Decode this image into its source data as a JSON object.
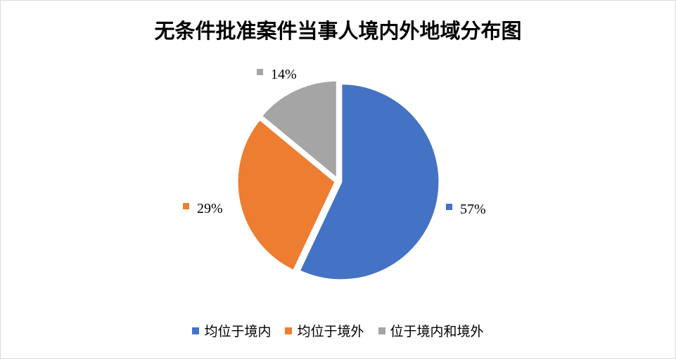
{
  "chart_data": {
    "type": "pie",
    "title": "无条件批准案件当事人境内外地域分布图",
    "categories": [
      "均位于境内",
      "均位于境外",
      "位于境内和境外"
    ],
    "values": [
      57,
      29,
      14
    ],
    "labels": [
      "57%",
      "29%",
      "14%"
    ],
    "colors": [
      "#4472C4",
      "#ED7D31",
      "#A5A5A5"
    ],
    "start_angle": "12 o'clock, clockwise",
    "legend_position": "bottom"
  }
}
